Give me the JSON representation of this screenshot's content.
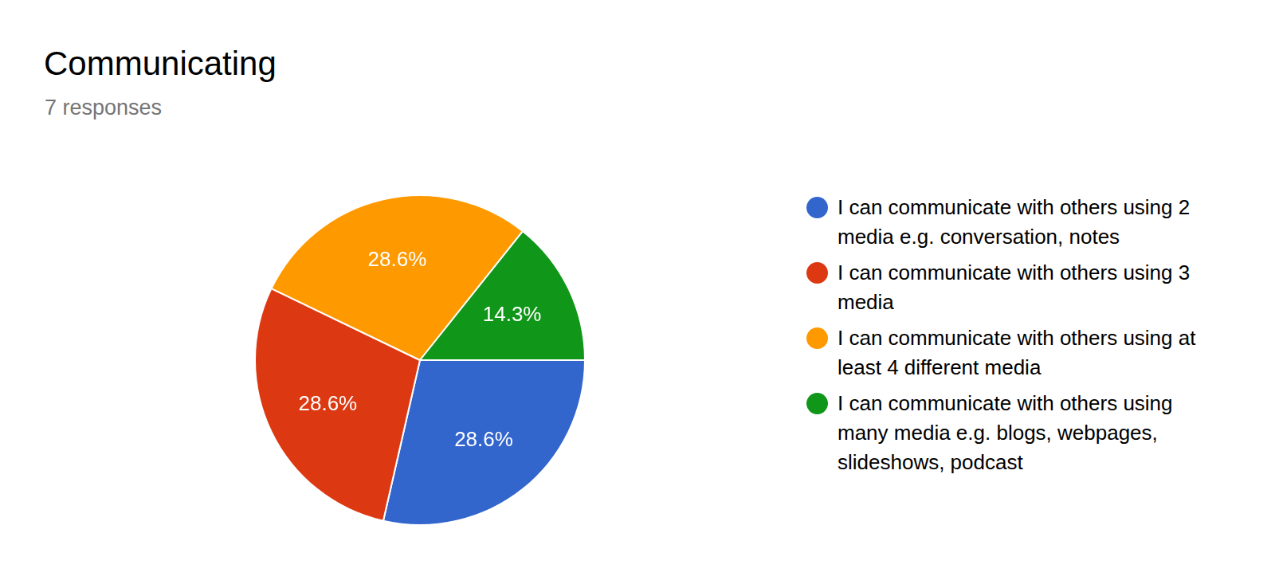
{
  "chart_data": {
    "type": "pie",
    "title": "Communicating",
    "subtitle": "7 responses",
    "categories": [
      "I can communicate with others using 2 media e.g. conversation, notes",
      "I can communicate with others using 3 media",
      "I can communicate with others using at least 4 different media",
      "I can communicate with others using many media e.g. blogs, webpages, slideshows, podcast"
    ],
    "values": [
      28.6,
      28.6,
      28.6,
      14.3
    ],
    "value_labels": [
      "28.6%",
      "28.6%",
      "28.6%",
      "14.3%"
    ],
    "colors": [
      "#3366cc",
      "#dc3912",
      "#ff9900",
      "#109618"
    ],
    "data_labels": true,
    "legend": "right"
  }
}
